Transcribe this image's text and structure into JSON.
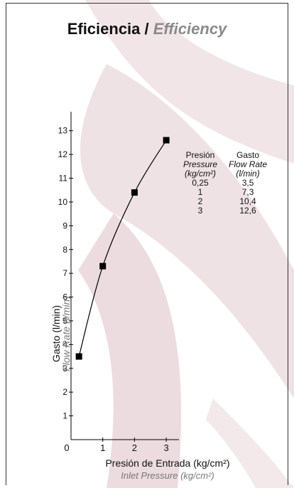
{
  "title": {
    "es": "Eficiencia",
    "sep": " / ",
    "en": "Efficiency"
  },
  "table": {
    "col1": {
      "es": "Presión",
      "en": "Pressure",
      "unit": "(kg/cm²)"
    },
    "col2": {
      "es": "Gasto",
      "en": "Flow Rate",
      "unit": "(l/min)"
    },
    "rows": [
      [
        "0,25",
        "3,5"
      ],
      [
        "1",
        "7,3"
      ],
      [
        "2",
        "10,4"
      ],
      [
        "3",
        "12,6"
      ]
    ]
  },
  "chart_data": {
    "type": "line",
    "xlabel": "Presión de Entrada (kg/cm²)",
    "xlabel_en": "Inlet Pressure  (kg/cm²)",
    "ylabel": "Gasto (l/min)",
    "ylabel_en": "Flow Rate (l/min)",
    "x": [
      0.25,
      1,
      2,
      3
    ],
    "y": [
      3.5,
      7.3,
      10.4,
      12.6
    ],
    "xlim": [
      0,
      3.4
    ],
    "ylim": [
      0,
      13.8
    ],
    "xticks": [
      "0",
      "1",
      "2",
      "3"
    ],
    "yticks": [
      "1",
      "2",
      "3",
      "4",
      "5",
      "6",
      "7",
      "8",
      "9",
      "10",
      "11",
      "12",
      "13"
    ],
    "origin_label": "0",
    "grid": false,
    "marker": "square",
    "colors": {
      "line": "#000000",
      "background_art": "#ead9dc"
    }
  }
}
